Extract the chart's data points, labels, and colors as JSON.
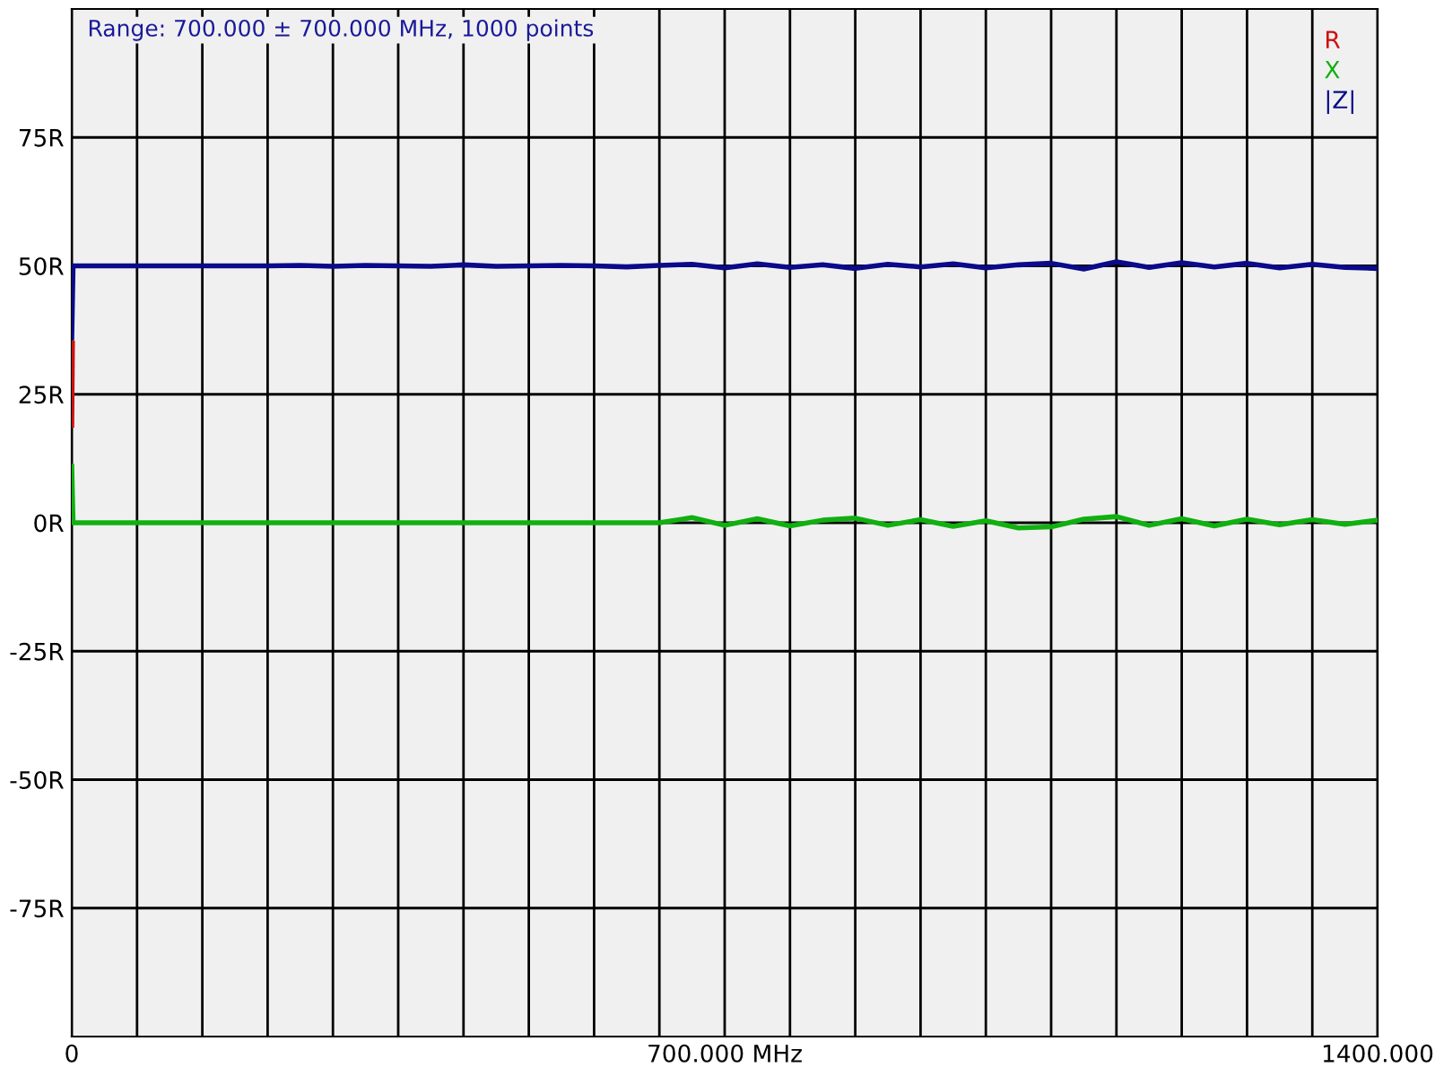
{
  "chart_data": {
    "type": "line",
    "annotations": [
      "Range: 700.000 ± 700.000 MHz, 1000 points"
    ],
    "xlim": [
      0,
      1400
    ],
    "ylim": [
      -100,
      100
    ],
    "xticks": [
      0,
      {
        "value": 70,
        "label": null
      },
      {
        "value": 140,
        "label": null
      },
      {
        "value": 210,
        "label": null
      },
      {
        "value": 280,
        "label": null
      },
      {
        "value": 350,
        "label": null
      },
      {
        "value": 420,
        "label": null
      },
      {
        "value": 490,
        "label": null
      },
      {
        "value": 560,
        "label": null
      },
      {
        "value": 630,
        "label": null
      },
      {
        "value": 700,
        "label": "700.000 MHz"
      },
      {
        "value": 770,
        "label": null
      },
      {
        "value": 840,
        "label": null
      },
      {
        "value": 910,
        "label": null
      },
      {
        "value": 980,
        "label": null
      },
      {
        "value": 1050,
        "label": null
      },
      {
        "value": 1120,
        "label": null
      },
      {
        "value": 1190,
        "label": null
      },
      {
        "value": 1260,
        "label": null
      },
      {
        "value": 1330,
        "label": null
      },
      {
        "value": 1400,
        "label": "1400.000"
      }
    ],
    "yticks": [
      {
        "value": -75,
        "label": "-75R"
      },
      {
        "value": -50,
        "label": "-50R"
      },
      {
        "value": -25,
        "label": "-25R"
      },
      {
        "value": 0,
        "label": "0R"
      },
      {
        "value": 25,
        "label": "25R"
      },
      {
        "value": 50,
        "label": "50R"
      },
      {
        "value": 75,
        "label": "75R"
      }
    ],
    "grid": true,
    "legend": "top right",
    "marker": "none",
    "line_style": "solid",
    "series": [
      {
        "name": "R",
        "color": "#cc1010",
        "x": [
          0,
          0.7
        ],
        "values": [
          19,
          35
        ]
      },
      {
        "name": "X",
        "color": "#10b010",
        "x": [
          0,
          1.4,
          35,
          70,
          105,
          140,
          175,
          210,
          245,
          280,
          315,
          350,
          385,
          420,
          455,
          490,
          525,
          560,
          595,
          630,
          665,
          700,
          735,
          770,
          805,
          840,
          875,
          910,
          945,
          980,
          1015,
          1050,
          1085,
          1120,
          1155,
          1190,
          1225,
          1260,
          1295,
          1330,
          1365,
          1400
        ],
        "values": [
          11,
          0,
          0,
          0,
          0,
          0,
          0,
          0,
          0,
          0,
          0,
          0,
          0,
          0,
          0,
          0,
          0,
          0,
          0,
          0,
          1,
          -0.5,
          0.8,
          -0.6,
          0.5,
          0.9,
          -0.5,
          0.6,
          -0.7,
          0.4,
          -1,
          -0.8,
          0.7,
          1.2,
          -0.5,
          0.8,
          -0.6,
          0.7,
          -0.4,
          0.6,
          -0.3,
          0.5
        ]
      },
      {
        "name": "|Z|",
        "color": "#0a0a8a",
        "x": [
          0,
          1.4,
          35,
          70,
          105,
          140,
          175,
          210,
          245,
          280,
          315,
          350,
          385,
          420,
          455,
          490,
          525,
          560,
          595,
          630,
          665,
          700,
          735,
          770,
          805,
          840,
          875,
          910,
          945,
          980,
          1015,
          1050,
          1085,
          1120,
          1155,
          1190,
          1225,
          1260,
          1295,
          1330,
          1365,
          1400
        ],
        "values": [
          36,
          50,
          50,
          50,
          50,
          50,
          50,
          50,
          50.1,
          49.9,
          50.1,
          50,
          49.9,
          50.2,
          49.9,
          50,
          50.1,
          50,
          49.8,
          50.1,
          50.3,
          49.6,
          50.4,
          49.7,
          50.2,
          49.5,
          50.3,
          49.8,
          50.4,
          49.6,
          50.2,
          50.5,
          49.4,
          50.8,
          49.7,
          50.6,
          49.8,
          50.5,
          49.6,
          50.3,
          49.7,
          49.5
        ]
      }
    ]
  }
}
